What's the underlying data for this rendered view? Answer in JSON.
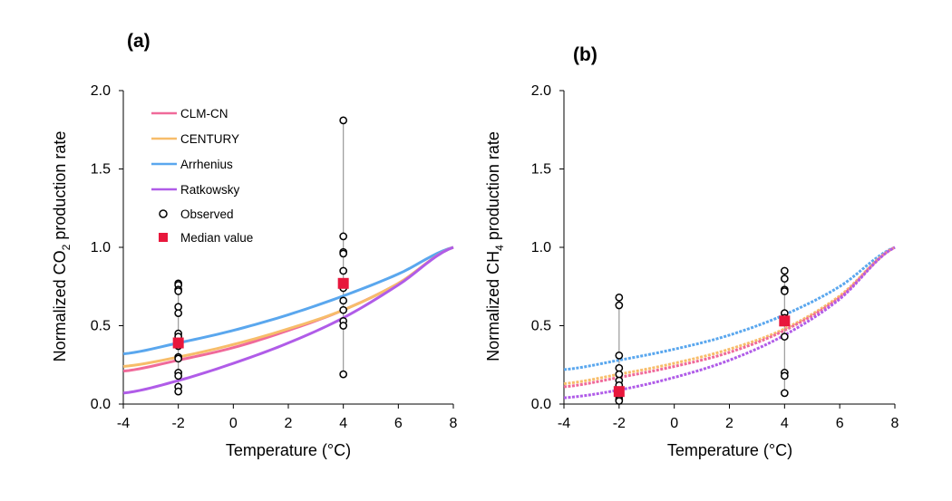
{
  "colors": {
    "clm_cn": "#f06a9a",
    "century": "#f7bd6a",
    "arrhenius": "#5aa7ee",
    "ratkowsky": "#b05ce8",
    "observed": "#000000",
    "median": "#e8173c",
    "whisker": "#999999"
  },
  "legend": {
    "clm_cn": "CLM-CN",
    "century": "CENTURY",
    "arrhenius": "Arrhenius",
    "ratkowsky": "Ratkowsky",
    "observed": "Observed",
    "median": "Median value"
  },
  "chart_data": [
    {
      "type": "line",
      "panel": "(a)",
      "xlabel": "Temperature (°C)",
      "ylabel_main": "Normalized CO",
      "ylabel_sub": "2",
      "ylabel_tail": " production rate",
      "xlim": [
        -4,
        8
      ],
      "ylim": [
        0,
        2.0
      ],
      "xticks": [
        "-4",
        "-2",
        "0",
        "2",
        "4",
        "6",
        "8"
      ],
      "yticks": [
        "0.0",
        "0.5",
        "1.0",
        "1.5",
        "2.0"
      ],
      "series": [
        {
          "key": "arrhenius",
          "name": "Arrhenius",
          "x": [
            -4,
            -2,
            0,
            2,
            4,
            6,
            8
          ],
          "y": [
            0.32,
            0.39,
            0.47,
            0.57,
            0.69,
            0.83,
            1.0
          ]
        },
        {
          "key": "clm_cn",
          "name": "CLM-CN",
          "x": [
            -4,
            -2,
            0,
            2,
            4,
            6,
            8
          ],
          "y": [
            0.21,
            0.28,
            0.36,
            0.47,
            0.6,
            0.77,
            1.0
          ]
        },
        {
          "key": "century",
          "name": "CENTURY",
          "x": [
            -4,
            -2,
            0,
            2,
            4,
            6,
            8
          ],
          "y": [
            0.24,
            0.3,
            0.38,
            0.48,
            0.6,
            0.77,
            1.0
          ]
        },
        {
          "key": "ratkowsky",
          "name": "Ratkowsky",
          "x": [
            -4,
            -2,
            0,
            2,
            4,
            6,
            8
          ],
          "y": [
            0.07,
            0.15,
            0.26,
            0.39,
            0.55,
            0.76,
            1.0
          ]
        }
      ],
      "observed": [
        {
          "x": -2,
          "y": [
            0.77,
            0.76,
            0.73,
            0.72,
            0.62,
            0.58,
            0.45,
            0.43,
            0.37,
            0.3,
            0.29,
            0.2,
            0.18,
            0.11,
            0.08
          ]
        },
        {
          "x": 4,
          "y": [
            1.81,
            1.07,
            0.97,
            0.96,
            0.85,
            0.74,
            0.66,
            0.6,
            0.53,
            0.5,
            0.19
          ]
        }
      ],
      "medians": [
        {
          "x": -2,
          "y": 0.39
        },
        {
          "x": 4,
          "y": 0.77
        }
      ],
      "show_legend": true
    },
    {
      "type": "line",
      "panel": "(b)",
      "xlabel": "Temperature (°C)",
      "ylabel_main": "Normalized CH",
      "ylabel_sub": "4",
      "ylabel_tail": " production rate",
      "xlim": [
        -4,
        8
      ],
      "ylim": [
        0,
        2.0
      ],
      "xticks": [
        "-4",
        "-2",
        "0",
        "2",
        "4",
        "6",
        "8"
      ],
      "yticks": [
        "0.0",
        "0.5",
        "1.0",
        "1.5",
        "2.0"
      ],
      "series": [
        {
          "key": "arrhenius",
          "name": "Arrhenius",
          "x": [
            -4,
            -2,
            0,
            2,
            4,
            6,
            8
          ],
          "y": [
            0.22,
            0.28,
            0.35,
            0.44,
            0.57,
            0.75,
            1.0
          ]
        },
        {
          "key": "century",
          "name": "CENTURY",
          "x": [
            -4,
            -2,
            0,
            2,
            4,
            6,
            8
          ],
          "y": [
            0.13,
            0.19,
            0.26,
            0.35,
            0.48,
            0.69,
            1.0
          ]
        },
        {
          "key": "clm_cn",
          "name": "CLM-CN",
          "x": [
            -4,
            -2,
            0,
            2,
            4,
            6,
            8
          ],
          "y": [
            0.11,
            0.17,
            0.24,
            0.33,
            0.47,
            0.68,
            1.0
          ]
        },
        {
          "key": "ratkowsky",
          "name": "Ratkowsky",
          "x": [
            -4,
            -2,
            0,
            2,
            4,
            6,
            8
          ],
          "y": [
            0.04,
            0.09,
            0.17,
            0.28,
            0.44,
            0.67,
            1.0
          ]
        }
      ],
      "observed": [
        {
          "x": -2,
          "y": [
            0.68,
            0.63,
            0.31,
            0.23,
            0.19,
            0.15,
            0.12,
            0.08,
            0.05,
            0.03,
            0.02
          ]
        },
        {
          "x": 4,
          "y": [
            0.85,
            0.8,
            0.73,
            0.72,
            0.58,
            0.55,
            0.43,
            0.2,
            0.18,
            0.07
          ]
        }
      ],
      "medians": [
        {
          "x": -2,
          "y": 0.08
        },
        {
          "x": 4,
          "y": 0.53
        }
      ],
      "show_legend": false
    }
  ]
}
